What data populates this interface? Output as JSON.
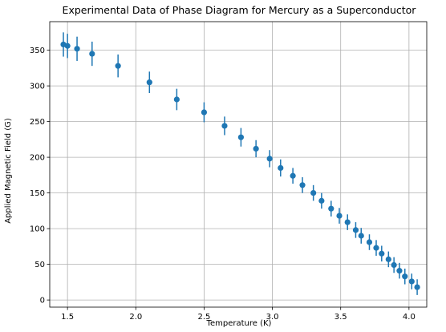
{
  "chart_data": {
    "type": "scatter",
    "title": "Experimental Data of Phase Diagram for Mercury as a Superconductor",
    "xlabel": "Temperature (K)",
    "ylabel": "Applied Magnetic Field (G)",
    "xlim": [
      1.37,
      4.13
    ],
    "ylim": [
      -10,
      390
    ],
    "xticks": [
      {
        "value": 1.5,
        "label": "1.5"
      },
      {
        "value": 2.0,
        "label": "2.0"
      },
      {
        "value": 2.5,
        "label": "2.5"
      },
      {
        "value": 3.0,
        "label": "3.0"
      },
      {
        "value": 3.5,
        "label": "3.5"
      },
      {
        "value": 4.0,
        "label": "4.0"
      }
    ],
    "yticks": [
      {
        "value": 0,
        "label": "0"
      },
      {
        "value": 50,
        "label": "50"
      },
      {
        "value": 100,
        "label": "100"
      },
      {
        "value": 150,
        "label": "150"
      },
      {
        "value": 200,
        "label": "200"
      },
      {
        "value": 250,
        "label": "250"
      },
      {
        "value": 300,
        "label": "300"
      },
      {
        "value": 350,
        "label": "350"
      }
    ],
    "grid": true,
    "color": "#1f77b4",
    "series": [
      {
        "points": [
          {
            "x": 1.47,
            "y": 358,
            "err": 17
          },
          {
            "x": 1.5,
            "y": 356,
            "err": 17
          },
          {
            "x": 1.57,
            "y": 352,
            "err": 17
          },
          {
            "x": 1.68,
            "y": 345,
            "err": 17
          },
          {
            "x": 1.87,
            "y": 328,
            "err": 16
          },
          {
            "x": 2.1,
            "y": 305,
            "err": 15
          },
          {
            "x": 2.3,
            "y": 281,
            "err": 15
          },
          {
            "x": 2.5,
            "y": 263,
            "err": 14
          },
          {
            "x": 2.65,
            "y": 244,
            "err": 13
          },
          {
            "x": 2.77,
            "y": 228,
            "err": 13
          },
          {
            "x": 2.88,
            "y": 212,
            "err": 12
          },
          {
            "x": 2.98,
            "y": 198,
            "err": 12
          },
          {
            "x": 3.06,
            "y": 185,
            "err": 12
          },
          {
            "x": 3.15,
            "y": 174,
            "err": 11
          },
          {
            "x": 3.22,
            "y": 161,
            "err": 11
          },
          {
            "x": 3.3,
            "y": 150,
            "err": 11
          },
          {
            "x": 3.36,
            "y": 139,
            "err": 11
          },
          {
            "x": 3.43,
            "y": 128,
            "err": 11
          },
          {
            "x": 3.49,
            "y": 118,
            "err": 11
          },
          {
            "x": 3.55,
            "y": 109,
            "err": 11
          },
          {
            "x": 3.61,
            "y": 98,
            "err": 11
          },
          {
            "x": 3.65,
            "y": 90,
            "err": 11
          },
          {
            "x": 3.71,
            "y": 81,
            "err": 11
          },
          {
            "x": 3.76,
            "y": 73,
            "err": 11
          },
          {
            "x": 3.8,
            "y": 65,
            "err": 11
          },
          {
            "x": 3.85,
            "y": 57,
            "err": 11
          },
          {
            "x": 3.89,
            "y": 49,
            "err": 11
          },
          {
            "x": 3.93,
            "y": 41,
            "err": 11
          },
          {
            "x": 3.97,
            "y": 33,
            "err": 11
          },
          {
            "x": 4.02,
            "y": 26,
            "err": 11
          },
          {
            "x": 4.06,
            "y": 18,
            "err": 11
          }
        ]
      }
    ]
  }
}
